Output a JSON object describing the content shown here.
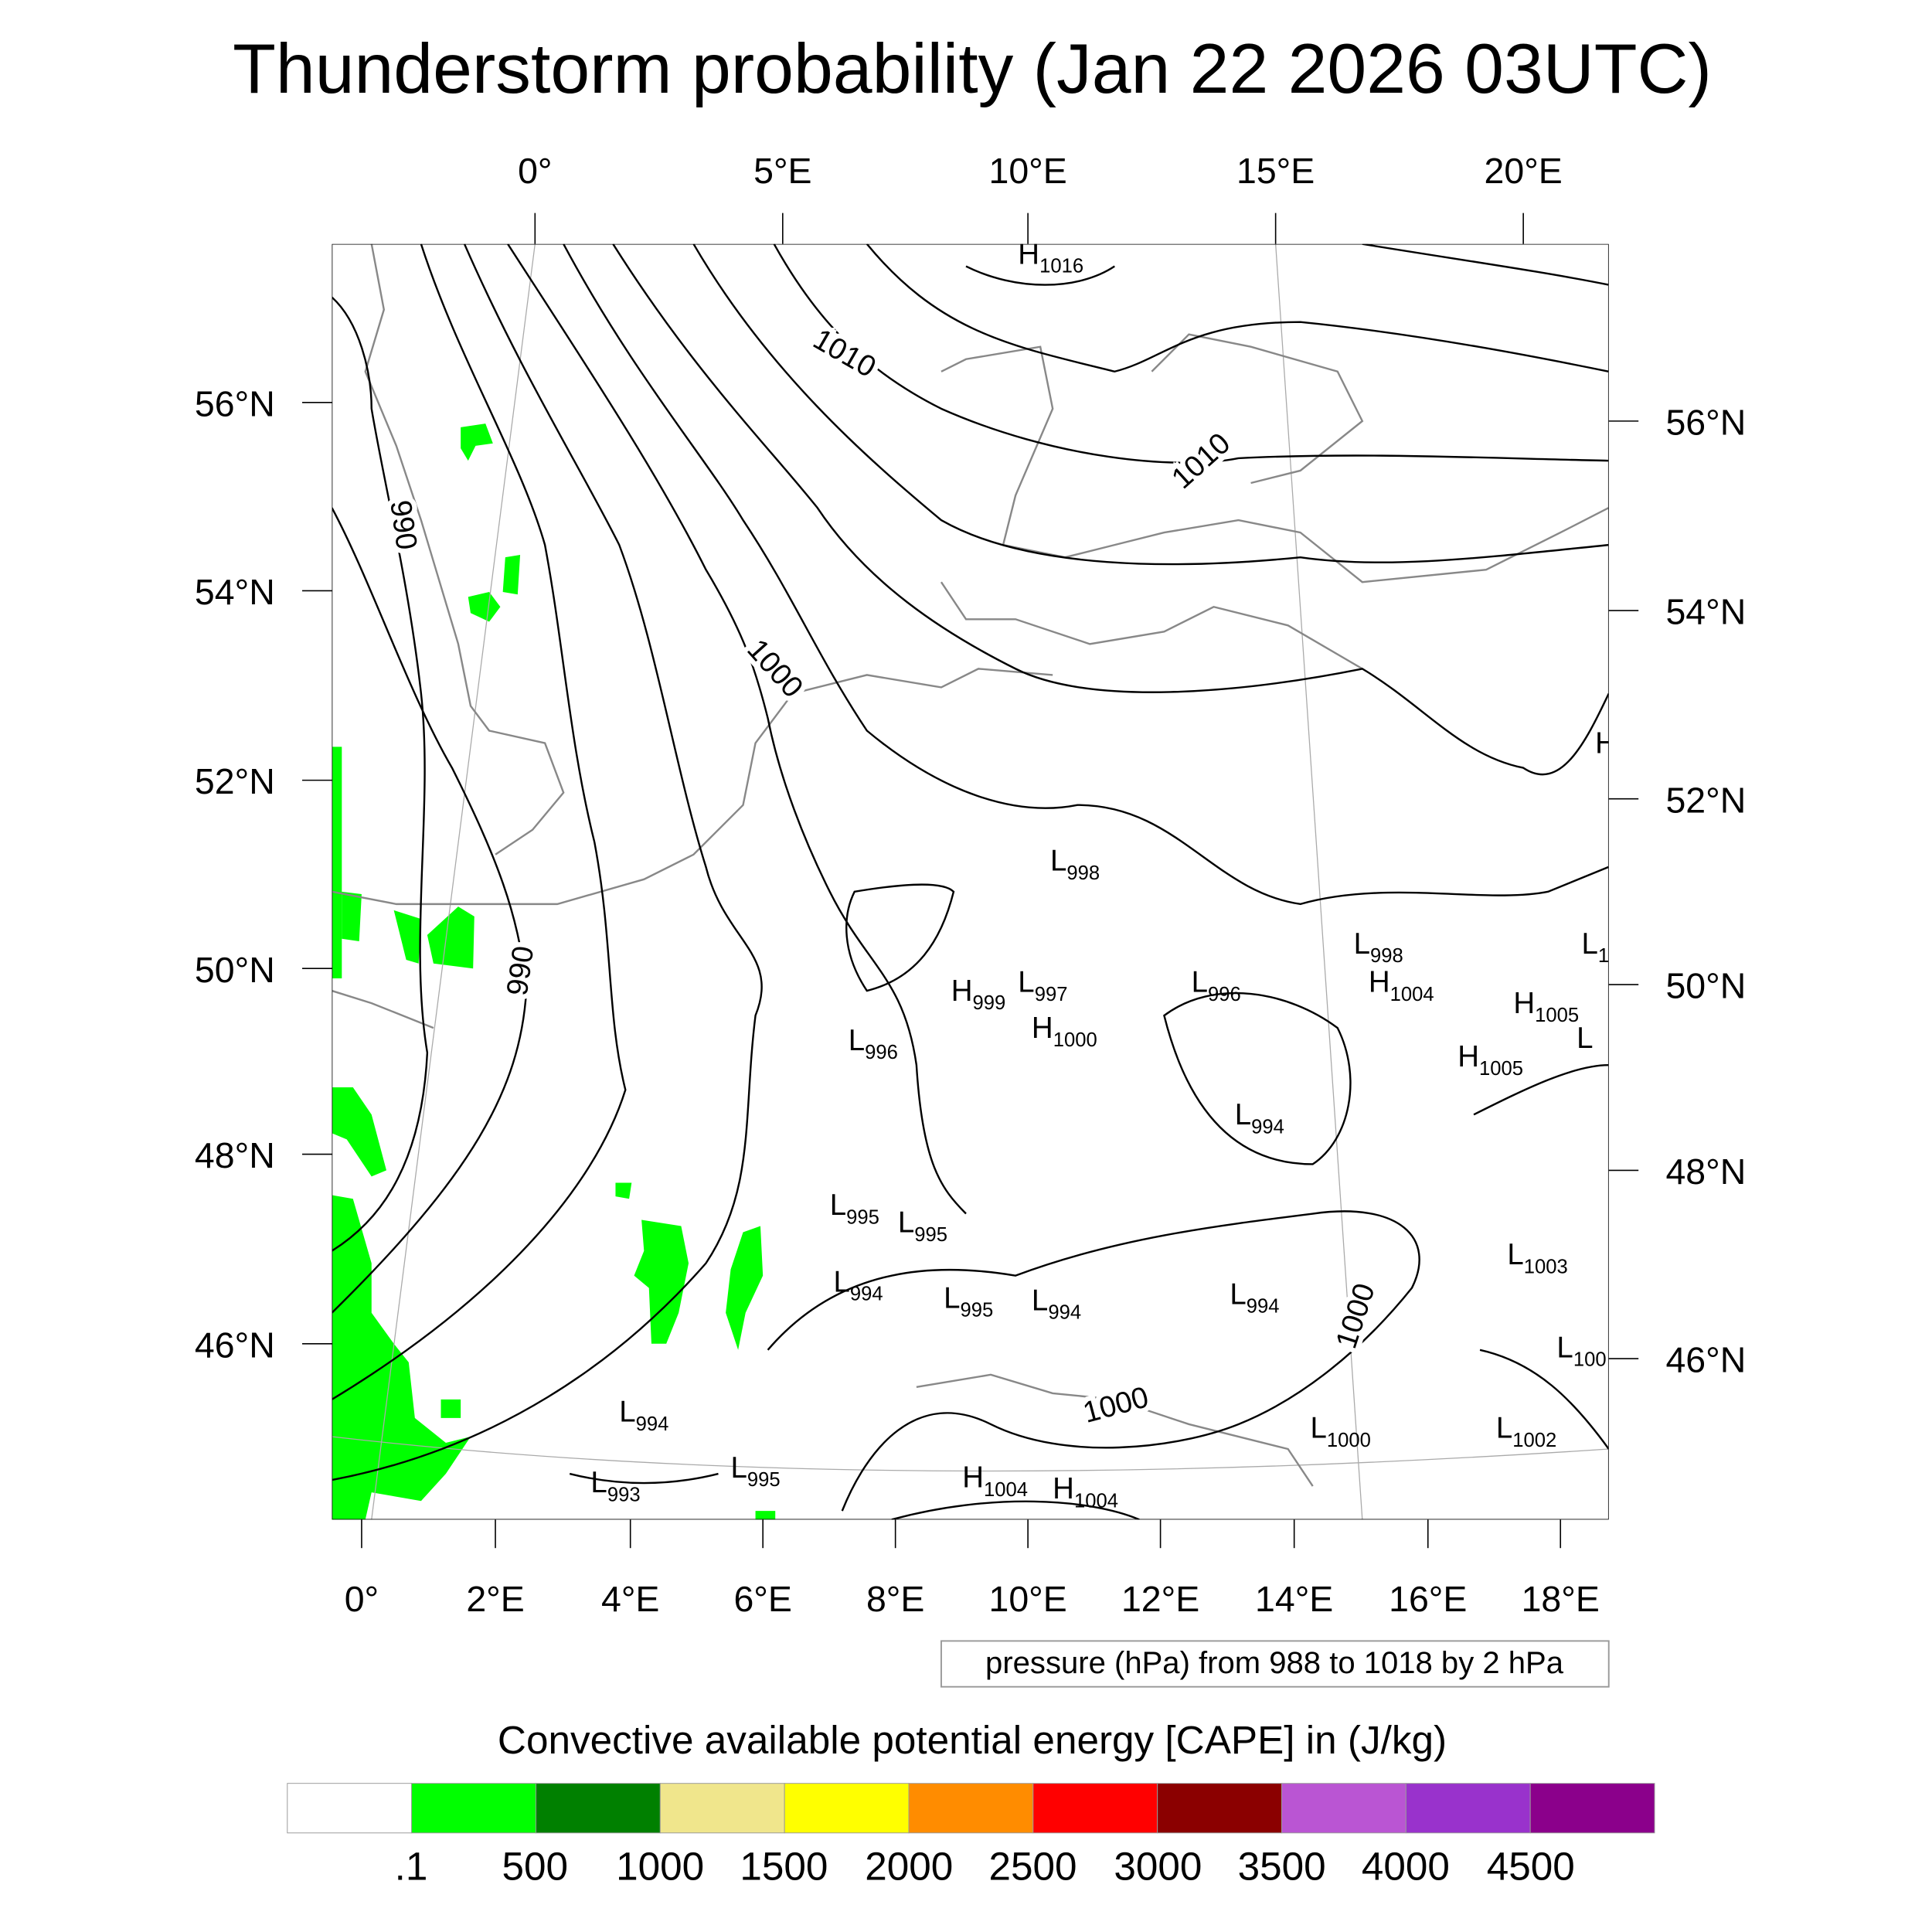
{
  "chart_data": {
    "type": "heatmap",
    "title": "Thunderstorm probability (Jan 22 2026 03UTC)",
    "top_lon_labels": [
      "0°",
      "5°E",
      "10°E",
      "15°E",
      "20°E"
    ],
    "left_lat_labels": [
      "56°N",
      "54°N",
      "52°N",
      "50°N",
      "48°N",
      "46°N"
    ],
    "right_lat_labels": [
      "56°N",
      "54°N",
      "52°N",
      "50°N",
      "48°N",
      "46°N"
    ],
    "bottom_lon_labels": [
      "0°",
      "2°E",
      "4°E",
      "6°E",
      "8°E",
      "10°E",
      "12°E",
      "14°E",
      "16°E",
      "18°E"
    ],
    "contour_field": "pressure (hPa)",
    "contour_range": [
      988,
      1018
    ],
    "contour_interval": 2,
    "contour_labels": [
      "990",
      "990",
      "1010",
      "1010",
      "1000",
      "1000",
      "1000"
    ],
    "pressure_centers": [
      {
        "type": "H",
        "value": "1016"
      },
      {
        "type": "L",
        "value": "998"
      },
      {
        "type": "L",
        "value": "998"
      },
      {
        "type": "H",
        "value": "1004"
      },
      {
        "type": "H",
        "value": "1005"
      },
      {
        "type": "H",
        "value": "1005"
      },
      {
        "type": "H",
        "value": "999"
      },
      {
        "type": "L",
        "value": "997"
      },
      {
        "type": "L",
        "value": "996"
      },
      {
        "type": "H",
        "value": "1000"
      },
      {
        "type": "L",
        "value": "996"
      },
      {
        "type": "L",
        "value": "994"
      },
      {
        "type": "L",
        "value": "995"
      },
      {
        "type": "L",
        "value": "995"
      },
      {
        "type": "L",
        "value": "1003"
      },
      {
        "type": "L",
        "value": "994"
      },
      {
        "type": "L",
        "value": "995"
      },
      {
        "type": "L",
        "value": "994"
      },
      {
        "type": "L",
        "value": "994"
      },
      {
        "type": "L",
        "value": "994"
      },
      {
        "type": "L",
        "value": "993"
      },
      {
        "type": "L",
        "value": "995"
      },
      {
        "type": "H",
        "value": "1004"
      },
      {
        "type": "H",
        "value": "1004"
      },
      {
        "type": "L",
        "value": "1000"
      },
      {
        "type": "L",
        "value": "1002"
      },
      {
        "type": "L",
        "value": "100"
      },
      {
        "type": "H",
        "value": ""
      },
      {
        "type": "L",
        "value": "1"
      },
      {
        "type": "L",
        "value": ""
      }
    ],
    "legend_text": "pressure (hPa) from 988 to 1018 by 2 hPa",
    "colorbar": {
      "title": "Convective available potential energy [CAPE] in (J/kg)",
      "levels": [
        ".1",
        "500",
        "1000",
        "1500",
        "2000",
        "2500",
        "3000",
        "3500",
        "4000",
        "4500"
      ],
      "colors": [
        "#FFFFFF",
        "#00FF00",
        "#008000",
        "#F0E68C",
        "#FFFF00",
        "#FF8C00",
        "#FF0000",
        "#8B0000",
        "#BA55D3",
        "#9932CC",
        "#8B008B"
      ]
    },
    "cape_fill_color": "#00FF00"
  }
}
